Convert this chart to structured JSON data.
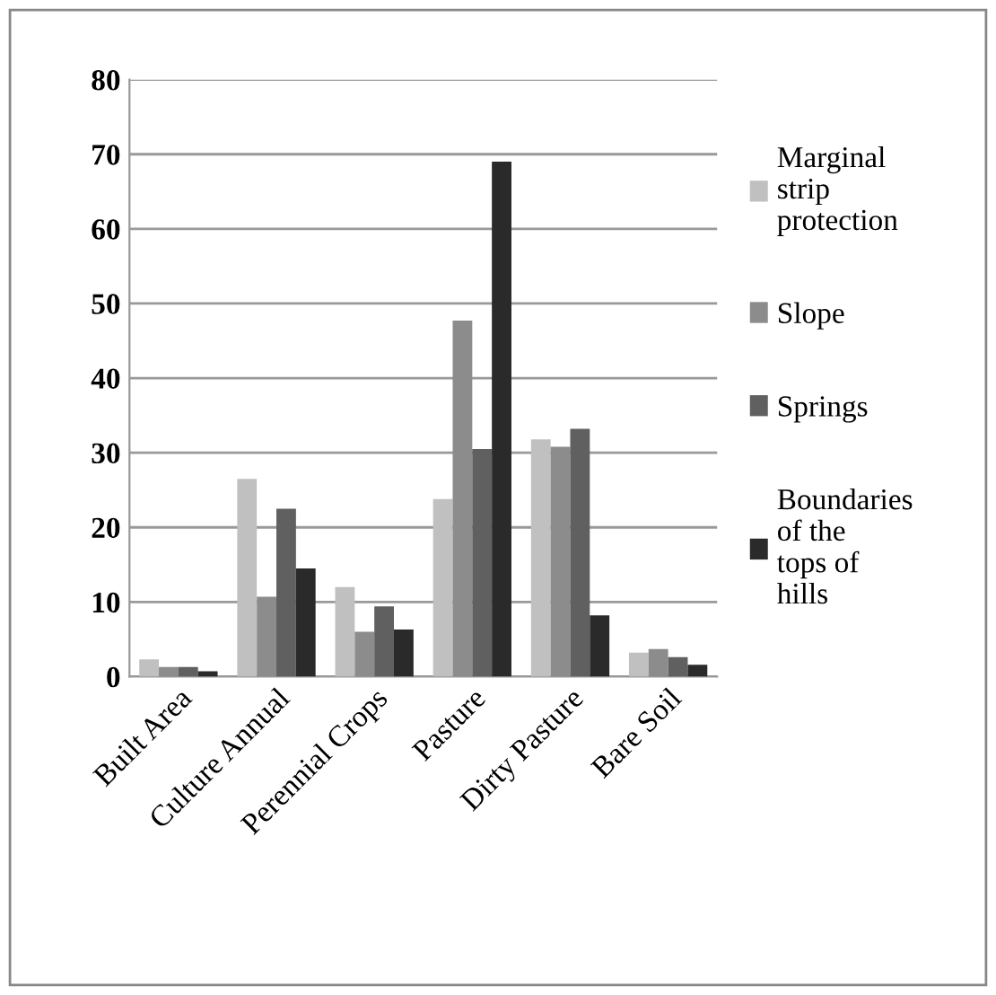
{
  "chart_data": {
    "type": "bar",
    "categories": [
      "Built Area",
      "Culture Annual",
      "Perennial Crops",
      "Pasture",
      "Dirty Pasture",
      "Bare Soil"
    ],
    "series": [
      {
        "name": "Marginal strip protection",
        "color": "#c0c0c0",
        "values": [
          2.3,
          26.5,
          12,
          23.8,
          31.8,
          3.2
        ]
      },
      {
        "name": "Slope",
        "color": "#8c8c8c",
        "values": [
          1.3,
          10.7,
          6,
          47.7,
          30.8,
          3.7
        ]
      },
      {
        "name": "Springs",
        "color": "#606060",
        "values": [
          1.3,
          22.5,
          9.4,
          30.5,
          33.2,
          2.6
        ]
      },
      {
        "name": "Boundaries of the tops of hills",
        "color": "#2a2a2a",
        "values": [
          0.7,
          14.5,
          6.3,
          69,
          8.2,
          1.6
        ]
      }
    ],
    "ylim": [
      0,
      80
    ],
    "yticks": [
      0,
      10,
      20,
      30,
      40,
      50,
      60,
      70,
      80
    ],
    "grid": "y",
    "legend": "right"
  }
}
